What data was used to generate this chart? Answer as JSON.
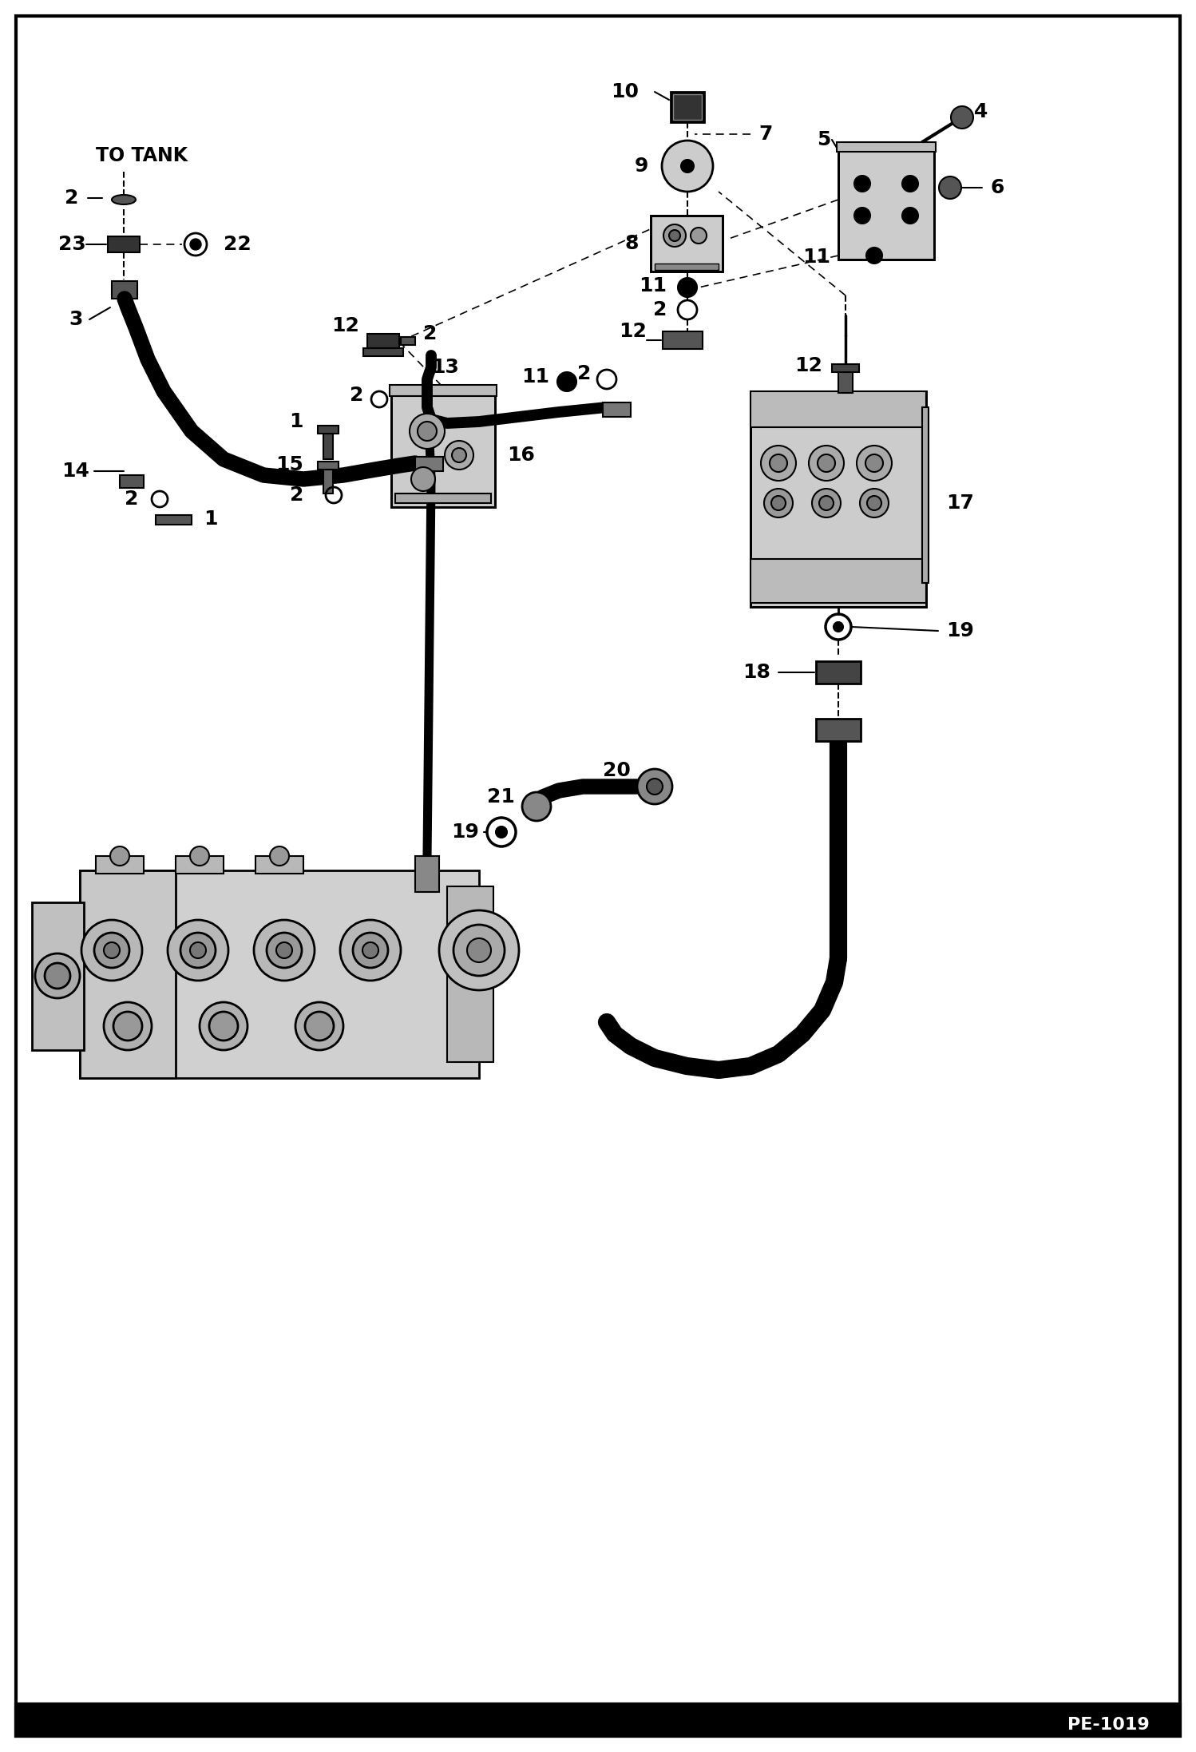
{
  "bg_color": "#ffffff",
  "border_color": "#000000",
  "bottom_bar_color": "#000000",
  "page_code": "PE-1019"
}
